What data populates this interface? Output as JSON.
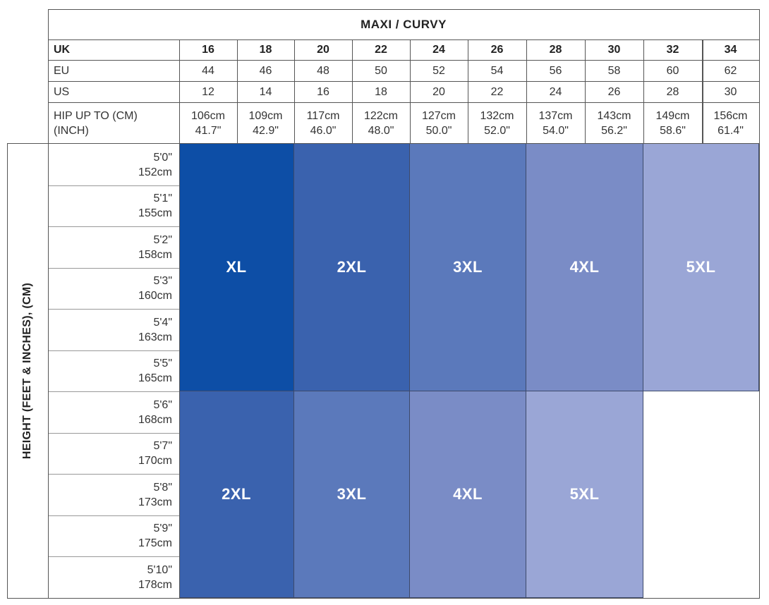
{
  "table": {
    "title": "MAXI / CURVY",
    "height_axis_label": "HEIGHT (FEET & INCHES), (CM)",
    "header_rows": [
      {
        "label": "UK",
        "values": [
          "16",
          "18",
          "20",
          "22",
          "24",
          "26",
          "28",
          "30",
          "32",
          "34"
        ]
      },
      {
        "label": "EU",
        "values": [
          "44",
          "46",
          "48",
          "50",
          "52",
          "54",
          "56",
          "58",
          "60",
          "62"
        ]
      },
      {
        "label": "US",
        "values": [
          "12",
          "14",
          "16",
          "18",
          "20",
          "22",
          "24",
          "26",
          "28",
          "30"
        ]
      }
    ],
    "hip_row": {
      "label_line1": "HIP UP TO (CM)",
      "label_line2": "(INCH)",
      "values": [
        {
          "cm": "106cm",
          "inch": "41.7\""
        },
        {
          "cm": "109cm",
          "inch": "42.9\""
        },
        {
          "cm": "117cm",
          "inch": "46.0\""
        },
        {
          "cm": "122cm",
          "inch": "48.0\""
        },
        {
          "cm": "127cm",
          "inch": "50.0\""
        },
        {
          "cm": "132cm",
          "inch": "52.0\""
        },
        {
          "cm": "137cm",
          "inch": "54.0\""
        },
        {
          "cm": "143cm",
          "inch": "56.2\""
        },
        {
          "cm": "149cm",
          "inch": "58.6\""
        },
        {
          "cm": "156cm",
          "inch": "61.4\""
        }
      ]
    },
    "heights": [
      {
        "ft": "5'0\"",
        "cm": "152cm"
      },
      {
        "ft": "5'1\"",
        "cm": "155cm"
      },
      {
        "ft": "5'2\"",
        "cm": "158cm"
      },
      {
        "ft": "5'3\"",
        "cm": "160cm"
      },
      {
        "ft": "5'4\"",
        "cm": "163cm"
      },
      {
        "ft": "5'5\"",
        "cm": "165cm"
      },
      {
        "ft": "5'6\"",
        "cm": "168cm"
      },
      {
        "ft": "5'7\"",
        "cm": "170cm"
      },
      {
        "ft": "5'8\"",
        "cm": "173cm"
      },
      {
        "ft": "5'9\"",
        "cm": "175cm"
      },
      {
        "ft": "5'10\"",
        "cm": "178cm"
      }
    ],
    "size_blocks": [
      {
        "label": "XL",
        "uk_sizes": [
          "16",
          "18"
        ],
        "heights": "5'0\"-5'5\"",
        "color": "#0d4ea6"
      },
      {
        "label": "2XL",
        "uk_sizes": [
          "20",
          "22"
        ],
        "heights": "5'0\"-5'5\"",
        "color": "#3a62ae"
      },
      {
        "label": "3XL",
        "uk_sizes": [
          "24",
          "26"
        ],
        "heights": "5'0\"-5'5\"",
        "color": "#5b79bb"
      },
      {
        "label": "4XL",
        "uk_sizes": [
          "28",
          "30"
        ],
        "heights": "5'0\"-5'5\"",
        "color": "#7a8cc6"
      },
      {
        "label": "5XL",
        "uk_sizes": [
          "32",
          "34"
        ],
        "heights": "5'0\"-5'5\"",
        "color": "#9aa6d6"
      },
      {
        "label": "2XL",
        "uk_sizes": [
          "16",
          "18"
        ],
        "heights": "5'6\"-5'10\"",
        "color": "#3a62ae"
      },
      {
        "label": "3XL",
        "uk_sizes": [
          "20",
          "22"
        ],
        "heights": "5'6\"-5'10\"",
        "color": "#5b79bb"
      },
      {
        "label": "4XL",
        "uk_sizes": [
          "24",
          "26"
        ],
        "heights": "5'6\"-5'10\"",
        "color": "#7a8cc6"
      },
      {
        "label": "5XL",
        "uk_sizes": [
          "28",
          "30"
        ],
        "heights": "5'6\"-5'10\"",
        "color": "#9aa6d6"
      }
    ]
  }
}
